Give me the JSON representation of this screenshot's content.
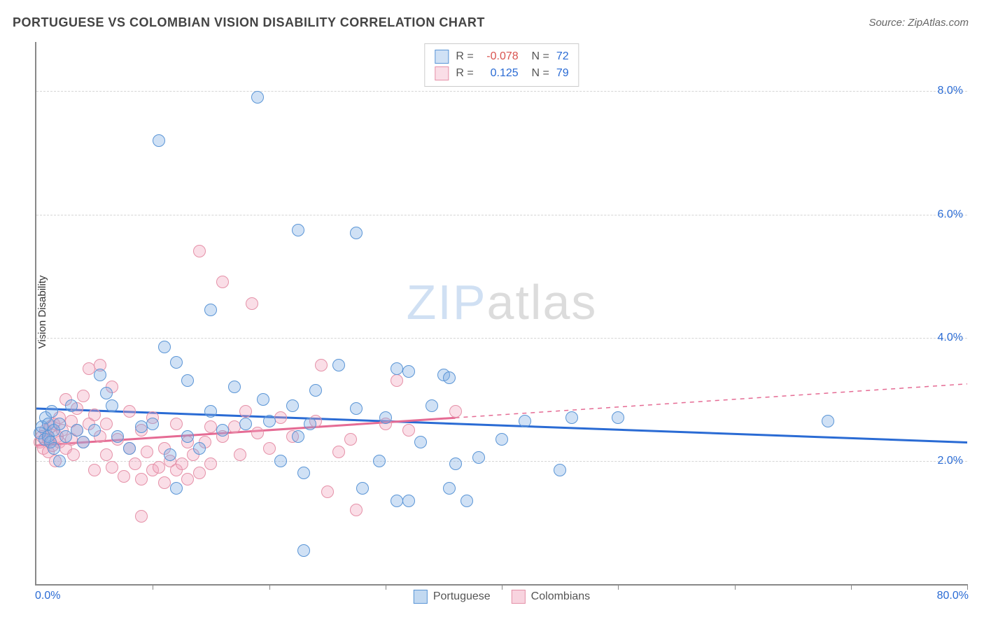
{
  "title": "PORTUGUESE VS COLOMBIAN VISION DISABILITY CORRELATION CHART",
  "source": "Source: ZipAtlas.com",
  "y_axis_label": "Vision Disability",
  "watermark": {
    "part1": "ZIP",
    "part2": "atlas"
  },
  "chart": {
    "type": "scatter",
    "background_color": "#ffffff",
    "grid_color": "#d5d5d5",
    "axis_color": "#888888",
    "xlim": [
      0,
      80
    ],
    "ylim": [
      0,
      8.8
    ],
    "x_tick_values": [
      0,
      10,
      20,
      30,
      40,
      50,
      60,
      70,
      80
    ],
    "x_tick_labels": {
      "min": "0.0%",
      "max": "80.0%"
    },
    "y_gridlines": [
      2,
      4,
      6,
      8
    ],
    "y_tick_labels": [
      "2.0%",
      "4.0%",
      "6.0%",
      "8.0%"
    ],
    "tick_label_color": "#2a6bd4",
    "tick_label_fontsize": 16,
    "title_fontsize": 18,
    "title_color": "#444444",
    "marker_radius": 9,
    "marker_border_width": 1.5,
    "marker_fill_opacity": 0.35,
    "series": [
      {
        "name": "Portuguese",
        "color_border": "#5a95d6",
        "color_fill": "rgba(120,170,225,0.35)",
        "regression": {
          "y_at_x0": 2.85,
          "y_at_x80": 2.3,
          "solid_to_x": 80,
          "line_color": "#2a6bd4",
          "line_width": 3
        },
        "stats": {
          "R": "-0.078",
          "N": "72",
          "R_color": "#d9534f"
        },
        "points": [
          [
            0.3,
            2.45
          ],
          [
            0.5,
            2.55
          ],
          [
            0.7,
            2.35
          ],
          [
            0.8,
            2.7
          ],
          [
            1.0,
            2.4
          ],
          [
            1.0,
            2.6
          ],
          [
            1.2,
            2.3
          ],
          [
            1.3,
            2.8
          ],
          [
            1.5,
            2.2
          ],
          [
            1.5,
            2.5
          ],
          [
            2.0,
            2.6
          ],
          [
            2.0,
            2.0
          ],
          [
            2.5,
            2.4
          ],
          [
            3.0,
            2.9
          ],
          [
            3.5,
            2.5
          ],
          [
            4.0,
            2.3
          ],
          [
            5.0,
            2.5
          ],
          [
            6.0,
            3.1
          ],
          [
            7.0,
            2.4
          ],
          [
            8.0,
            2.2
          ],
          [
            9.0,
            2.55
          ],
          [
            10.0,
            2.6
          ],
          [
            10.5,
            7.2
          ],
          [
            11.0,
            3.85
          ],
          [
            11.5,
            2.1
          ],
          [
            12.0,
            1.55
          ],
          [
            12.0,
            3.6
          ],
          [
            13.0,
            2.4
          ],
          [
            13.0,
            3.3
          ],
          [
            14.0,
            2.2
          ],
          [
            15.0,
            4.45
          ],
          [
            15.0,
            2.8
          ],
          [
            16.0,
            2.5
          ],
          [
            17.0,
            3.2
          ],
          [
            18.0,
            2.6
          ],
          [
            19.0,
            7.9
          ],
          [
            19.5,
            3.0
          ],
          [
            20.0,
            2.65
          ],
          [
            21.0,
            2.0
          ],
          [
            22.0,
            2.9
          ],
          [
            22.5,
            2.4
          ],
          [
            22.5,
            5.75
          ],
          [
            23.0,
            1.8
          ],
          [
            23.0,
            0.55
          ],
          [
            23.5,
            2.6
          ],
          [
            24.0,
            3.15
          ],
          [
            26.0,
            3.55
          ],
          [
            27.5,
            5.7
          ],
          [
            27.5,
            2.85
          ],
          [
            28.0,
            1.55
          ],
          [
            29.5,
            2.0
          ],
          [
            30.0,
            2.7
          ],
          [
            31.0,
            3.5
          ],
          [
            31.0,
            1.35
          ],
          [
            32.0,
            1.35
          ],
          [
            32.0,
            3.45
          ],
          [
            33.0,
            2.3
          ],
          [
            34.0,
            2.9
          ],
          [
            35.0,
            3.4
          ],
          [
            35.5,
            3.35
          ],
          [
            35.5,
            1.55
          ],
          [
            36.0,
            1.95
          ],
          [
            37.0,
            1.35
          ],
          [
            38.0,
            2.05
          ],
          [
            40.0,
            2.35
          ],
          [
            42.0,
            2.65
          ],
          [
            45.0,
            1.85
          ],
          [
            46.0,
            2.7
          ],
          [
            50.0,
            2.7
          ],
          [
            68.0,
            2.65
          ],
          [
            5.5,
            3.4
          ],
          [
            6.5,
            2.9
          ]
        ]
      },
      {
        "name": "Colombians",
        "color_border": "#e591a8",
        "color_fill": "rgba(240,160,185,0.35)",
        "regression": {
          "y_at_x0": 2.25,
          "y_at_x80": 3.25,
          "solid_to_x": 36,
          "line_color": "#e56b94",
          "line_width": 3
        },
        "stats": {
          "R": "0.125",
          "N": "79",
          "R_color": "#2a6bd4"
        },
        "points": [
          [
            0.3,
            2.3
          ],
          [
            0.5,
            2.4
          ],
          [
            0.6,
            2.2
          ],
          [
            0.8,
            2.5
          ],
          [
            1.0,
            2.35
          ],
          [
            1.0,
            2.15
          ],
          [
            1.2,
            2.55
          ],
          [
            1.4,
            2.25
          ],
          [
            1.5,
            2.6
          ],
          [
            1.6,
            2.0
          ],
          [
            1.8,
            2.4
          ],
          [
            2.0,
            2.3
          ],
          [
            2.0,
            2.7
          ],
          [
            2.2,
            2.5
          ],
          [
            2.5,
            2.2
          ],
          [
            2.5,
            3.0
          ],
          [
            3.0,
            2.65
          ],
          [
            3.0,
            2.35
          ],
          [
            3.2,
            2.1
          ],
          [
            3.5,
            2.85
          ],
          [
            3.5,
            2.5
          ],
          [
            4.0,
            3.05
          ],
          [
            4.0,
            2.3
          ],
          [
            4.5,
            3.5
          ],
          [
            4.5,
            2.6
          ],
          [
            5.0,
            2.75
          ],
          [
            5.0,
            1.85
          ],
          [
            5.5,
            2.4
          ],
          [
            5.5,
            3.55
          ],
          [
            6.0,
            2.1
          ],
          [
            6.0,
            2.6
          ],
          [
            6.5,
            1.9
          ],
          [
            6.5,
            3.2
          ],
          [
            7.0,
            2.35
          ],
          [
            7.5,
            1.75
          ],
          [
            8.0,
            2.8
          ],
          [
            8.0,
            2.2
          ],
          [
            8.5,
            1.95
          ],
          [
            9.0,
            2.5
          ],
          [
            9.0,
            1.7
          ],
          [
            9.0,
            1.1
          ],
          [
            9.5,
            2.15
          ],
          [
            10.0,
            1.85
          ],
          [
            10.0,
            2.7
          ],
          [
            10.5,
            1.9
          ],
          [
            11.0,
            2.2
          ],
          [
            11.0,
            1.65
          ],
          [
            11.5,
            2.0
          ],
          [
            12.0,
            2.6
          ],
          [
            12.0,
            1.85
          ],
          [
            12.5,
            1.95
          ],
          [
            13.0,
            2.3
          ],
          [
            13.0,
            1.7
          ],
          [
            13.5,
            2.1
          ],
          [
            14.0,
            1.8
          ],
          [
            14.0,
            5.4
          ],
          [
            14.5,
            2.3
          ],
          [
            15.0,
            1.95
          ],
          [
            15.0,
            2.55
          ],
          [
            16.0,
            2.4
          ],
          [
            16.0,
            4.9
          ],
          [
            17.0,
            2.55
          ],
          [
            17.5,
            2.1
          ],
          [
            18.0,
            2.8
          ],
          [
            18.5,
            4.55
          ],
          [
            19.0,
            2.45
          ],
          [
            20.0,
            2.2
          ],
          [
            21.0,
            2.7
          ],
          [
            22.0,
            2.4
          ],
          [
            24.0,
            2.65
          ],
          [
            24.5,
            3.55
          ],
          [
            25.0,
            1.5
          ],
          [
            26.0,
            2.15
          ],
          [
            27.0,
            2.35
          ],
          [
            27.5,
            1.2
          ],
          [
            30.0,
            2.6
          ],
          [
            31.0,
            3.3
          ],
          [
            32.0,
            2.5
          ],
          [
            36.0,
            2.8
          ]
        ]
      }
    ],
    "bottom_legend": [
      {
        "label": "Portuguese",
        "border": "#5a95d6",
        "fill": "rgba(120,170,225,0.45)"
      },
      {
        "label": "Colombians",
        "border": "#e591a8",
        "fill": "rgba(240,160,185,0.45)"
      }
    ]
  }
}
